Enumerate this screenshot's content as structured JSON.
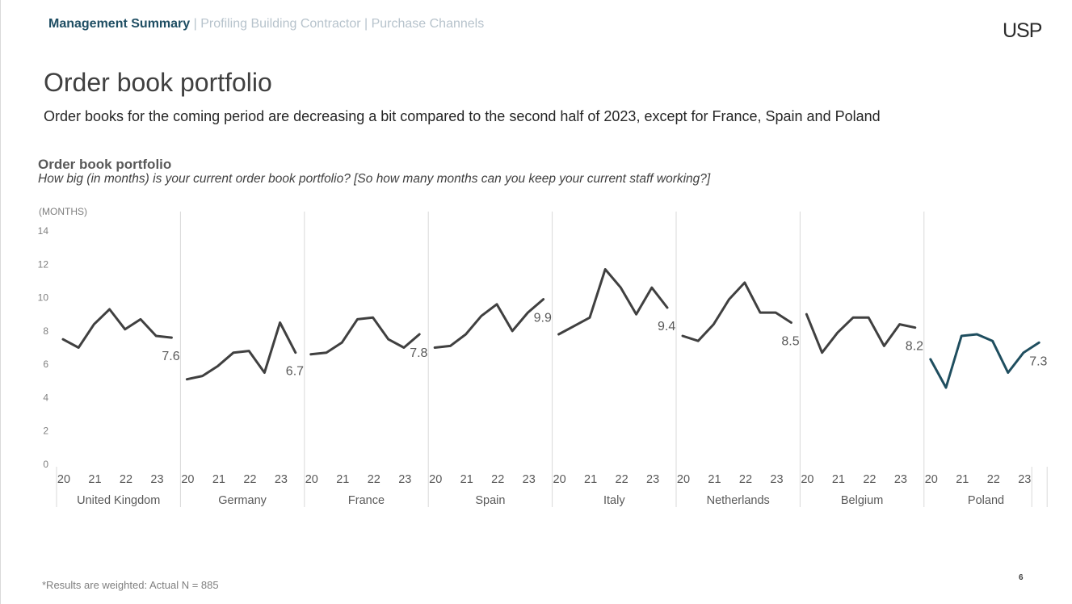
{
  "header": {
    "breadcrumb_active": "Management Summary",
    "breadcrumb_rest": " | Profiling Building Contractor | Purchase Channels",
    "logo": "USP"
  },
  "page": {
    "title": "Order book portfolio",
    "subtitle": "Order books for the coming period are decreasing a bit compared to the second half of 2023, except for France, Spain and Poland",
    "footnote": "*Results are weighted: Actual N = 885",
    "number": "6"
  },
  "chart_data": {
    "type": "line",
    "title": "Order book portfolio",
    "subtitle": "How big (in months) is your current order book portfolio?  [So how many months can you keep your current staff working?]",
    "ylabel": "(MONTHS)",
    "ylim": [
      0,
      14
    ],
    "yticks": [
      0,
      2,
      4,
      6,
      8,
      10,
      12,
      14
    ],
    "grid": false,
    "year_ticks": [
      "20",
      "21",
      "22",
      "23"
    ],
    "colors": {
      "default": "#404040",
      "highlight": "#1f4e5f"
    },
    "series": [
      {
        "name": "United Kingdom",
        "values": [
          7.5,
          7.0,
          8.4,
          9.3,
          8.1,
          8.7,
          7.7,
          7.6
        ],
        "last_label": "7.6"
      },
      {
        "name": "Germany",
        "values": [
          5.1,
          5.3,
          5.9,
          6.7,
          6.8,
          5.5,
          8.5,
          6.7
        ],
        "last_label": "6.7"
      },
      {
        "name": "France",
        "values": [
          6.6,
          6.7,
          7.3,
          8.7,
          8.8,
          7.5,
          7.0,
          7.8
        ],
        "last_label": "7.8"
      },
      {
        "name": "Spain",
        "values": [
          7.0,
          7.1,
          7.8,
          8.9,
          9.6,
          8.0,
          9.1,
          9.9
        ],
        "last_label": "9.9"
      },
      {
        "name": "Italy",
        "values": [
          7.8,
          8.3,
          8.8,
          11.7,
          10.6,
          9.0,
          10.6,
          9.4
        ],
        "last_label": "9.4"
      },
      {
        "name": "Netherlands",
        "values": [
          7.7,
          7.4,
          8.4,
          9.9,
          10.9,
          9.1,
          9.1,
          8.5
        ],
        "last_label": "8.5"
      },
      {
        "name": "Belgium",
        "values": [
          9.0,
          6.7,
          7.9,
          8.8,
          8.8,
          7.1,
          8.4,
          8.2
        ],
        "last_label": "8.2"
      },
      {
        "name": "Poland",
        "values": [
          6.3,
          4.6,
          7.7,
          7.8,
          7.4,
          5.5,
          6.7,
          7.3
        ],
        "last_label": "7.3",
        "highlight": true
      }
    ]
  }
}
